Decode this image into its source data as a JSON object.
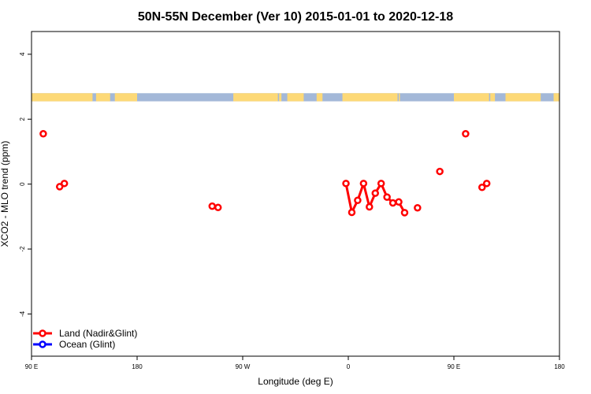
{
  "chart_data": {
    "type": "line",
    "title": "50N-55N December (Ver 10)   2015-01-01 to 2020-12-18",
    "xlabel": "Longitude (deg E)",
    "ylabel": "XCO2 - MLO trend (ppm)",
    "xlim": [
      90,
      540
    ],
    "ylim": [
      -5.3,
      4.7
    ],
    "x_ticks": [
      {
        "value": 90,
        "label": "90 E"
      },
      {
        "value": 180,
        "label": "180"
      },
      {
        "value": 270,
        "label": "90 W"
      },
      {
        "value": 360,
        "label": "0"
      },
      {
        "value": 450,
        "label": "90 E"
      },
      {
        "value": 540,
        "label": "180"
      }
    ],
    "y_ticks": [
      {
        "value": -4,
        "label": "-4"
      },
      {
        "value": -2,
        "label": "-2"
      },
      {
        "value": 0,
        "label": "0"
      },
      {
        "value": 2,
        "label": "2"
      },
      {
        "value": 4,
        "label": "4"
      }
    ],
    "grid": false,
    "legend_position": "bottom-left",
    "colors": {
      "land": "#ff0000",
      "ocean": "#0000ff",
      "map_land": "#fdd977",
      "map_ocean": "#a3b8d8"
    },
    "map_strip": {
      "y_range": [
        2.55,
        2.8
      ],
      "land_ranges": [
        [
          90,
          142
        ],
        [
          145,
          157
        ],
        [
          161,
          180
        ],
        [
          262,
          300
        ],
        [
          301,
          303
        ],
        [
          308,
          322
        ],
        [
          333,
          338
        ],
        [
          355,
          402
        ],
        [
          403,
          404
        ],
        [
          450,
          480
        ],
        [
          481,
          485
        ],
        [
          494,
          524
        ],
        [
          535,
          540
        ]
      ]
    },
    "series": [
      {
        "name": "Land (Nadir&Glint)",
        "color": "#ff0000",
        "segments": [
          [
            [
              100,
              1.55
            ]
          ],
          [
            [
              114,
              -0.08
            ],
            [
              118,
              0.02
            ]
          ],
          [
            [
              244,
              -0.68
            ],
            [
              249,
              -0.72
            ]
          ],
          [
            [
              358,
              0.02
            ],
            [
              363,
              -0.87
            ],
            [
              368,
              -0.5
            ],
            [
              373,
              0.02
            ],
            [
              378,
              -0.7
            ],
            [
              383,
              -0.28
            ],
            [
              388,
              0.02
            ],
            [
              393,
              -0.4
            ],
            [
              398,
              -0.58
            ],
            [
              403,
              -0.55
            ],
            [
              408,
              -0.88
            ]
          ],
          [
            [
              419,
              -0.73
            ]
          ],
          [
            [
              438,
              0.39
            ]
          ],
          [
            [
              460,
              1.55
            ]
          ],
          [
            [
              474,
              -0.1
            ],
            [
              478,
              0.02
            ]
          ]
        ]
      },
      {
        "name": "Ocean (Glint)",
        "color": "#0000ff",
        "segments": []
      }
    ]
  }
}
